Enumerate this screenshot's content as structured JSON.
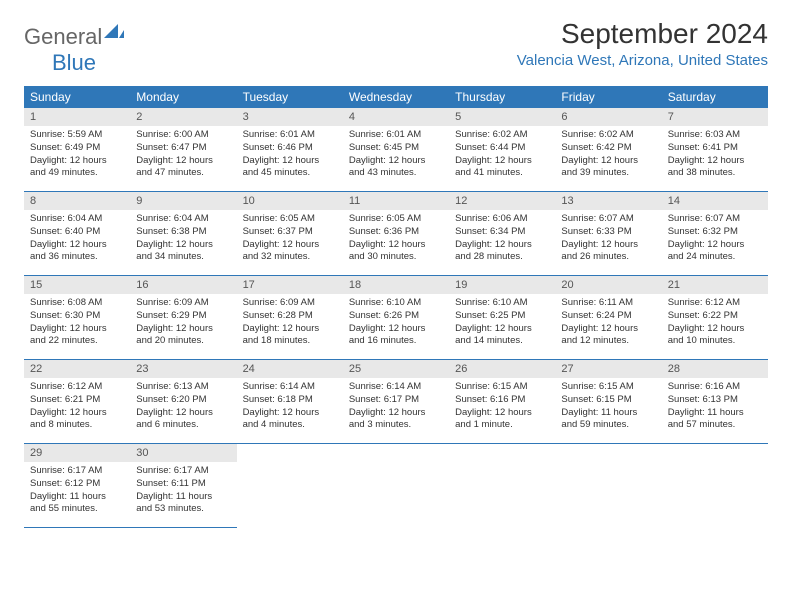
{
  "logo": {
    "text_general": "General",
    "text_blue": "Blue"
  },
  "title": "September 2024",
  "location": "Valencia West, Arizona, United States",
  "colors": {
    "header_bg": "#2f77b8",
    "header_fg": "#ffffff",
    "daynum_bg": "#e8e8e8",
    "daynum_fg": "#555555",
    "border": "#2f77b8",
    "text": "#333333",
    "location_fg": "#2f77b8"
  },
  "weekdays": [
    "Sunday",
    "Monday",
    "Tuesday",
    "Wednesday",
    "Thursday",
    "Friday",
    "Saturday"
  ],
  "days": [
    {
      "n": 1,
      "sunrise": "5:59 AM",
      "sunset": "6:49 PM",
      "daylight": "12 hours and 49 minutes."
    },
    {
      "n": 2,
      "sunrise": "6:00 AM",
      "sunset": "6:47 PM",
      "daylight": "12 hours and 47 minutes."
    },
    {
      "n": 3,
      "sunrise": "6:01 AM",
      "sunset": "6:46 PM",
      "daylight": "12 hours and 45 minutes."
    },
    {
      "n": 4,
      "sunrise": "6:01 AM",
      "sunset": "6:45 PM",
      "daylight": "12 hours and 43 minutes."
    },
    {
      "n": 5,
      "sunrise": "6:02 AM",
      "sunset": "6:44 PM",
      "daylight": "12 hours and 41 minutes."
    },
    {
      "n": 6,
      "sunrise": "6:02 AM",
      "sunset": "6:42 PM",
      "daylight": "12 hours and 39 minutes."
    },
    {
      "n": 7,
      "sunrise": "6:03 AM",
      "sunset": "6:41 PM",
      "daylight": "12 hours and 38 minutes."
    },
    {
      "n": 8,
      "sunrise": "6:04 AM",
      "sunset": "6:40 PM",
      "daylight": "12 hours and 36 minutes."
    },
    {
      "n": 9,
      "sunrise": "6:04 AM",
      "sunset": "6:38 PM",
      "daylight": "12 hours and 34 minutes."
    },
    {
      "n": 10,
      "sunrise": "6:05 AM",
      "sunset": "6:37 PM",
      "daylight": "12 hours and 32 minutes."
    },
    {
      "n": 11,
      "sunrise": "6:05 AM",
      "sunset": "6:36 PM",
      "daylight": "12 hours and 30 minutes."
    },
    {
      "n": 12,
      "sunrise": "6:06 AM",
      "sunset": "6:34 PM",
      "daylight": "12 hours and 28 minutes."
    },
    {
      "n": 13,
      "sunrise": "6:07 AM",
      "sunset": "6:33 PM",
      "daylight": "12 hours and 26 minutes."
    },
    {
      "n": 14,
      "sunrise": "6:07 AM",
      "sunset": "6:32 PM",
      "daylight": "12 hours and 24 minutes."
    },
    {
      "n": 15,
      "sunrise": "6:08 AM",
      "sunset": "6:30 PM",
      "daylight": "12 hours and 22 minutes."
    },
    {
      "n": 16,
      "sunrise": "6:09 AM",
      "sunset": "6:29 PM",
      "daylight": "12 hours and 20 minutes."
    },
    {
      "n": 17,
      "sunrise": "6:09 AM",
      "sunset": "6:28 PM",
      "daylight": "12 hours and 18 minutes."
    },
    {
      "n": 18,
      "sunrise": "6:10 AM",
      "sunset": "6:26 PM",
      "daylight": "12 hours and 16 minutes."
    },
    {
      "n": 19,
      "sunrise": "6:10 AM",
      "sunset": "6:25 PM",
      "daylight": "12 hours and 14 minutes."
    },
    {
      "n": 20,
      "sunrise": "6:11 AM",
      "sunset": "6:24 PM",
      "daylight": "12 hours and 12 minutes."
    },
    {
      "n": 21,
      "sunrise": "6:12 AM",
      "sunset": "6:22 PM",
      "daylight": "12 hours and 10 minutes."
    },
    {
      "n": 22,
      "sunrise": "6:12 AM",
      "sunset": "6:21 PM",
      "daylight": "12 hours and 8 minutes."
    },
    {
      "n": 23,
      "sunrise": "6:13 AM",
      "sunset": "6:20 PM",
      "daylight": "12 hours and 6 minutes."
    },
    {
      "n": 24,
      "sunrise": "6:14 AM",
      "sunset": "6:18 PM",
      "daylight": "12 hours and 4 minutes."
    },
    {
      "n": 25,
      "sunrise": "6:14 AM",
      "sunset": "6:17 PM",
      "daylight": "12 hours and 3 minutes."
    },
    {
      "n": 26,
      "sunrise": "6:15 AM",
      "sunset": "6:16 PM",
      "daylight": "12 hours and 1 minute."
    },
    {
      "n": 27,
      "sunrise": "6:15 AM",
      "sunset": "6:15 PM",
      "daylight": "11 hours and 59 minutes."
    },
    {
      "n": 28,
      "sunrise": "6:16 AM",
      "sunset": "6:13 PM",
      "daylight": "11 hours and 57 minutes."
    },
    {
      "n": 29,
      "sunrise": "6:17 AM",
      "sunset": "6:12 PM",
      "daylight": "11 hours and 55 minutes."
    },
    {
      "n": 30,
      "sunrise": "6:17 AM",
      "sunset": "6:11 PM",
      "daylight": "11 hours and 53 minutes."
    }
  ],
  "labels": {
    "sunrise_prefix": "Sunrise: ",
    "sunset_prefix": "Sunset: ",
    "daylight_prefix": "Daylight: "
  },
  "grid": {
    "start_weekday": 0,
    "total_cells": 35
  }
}
